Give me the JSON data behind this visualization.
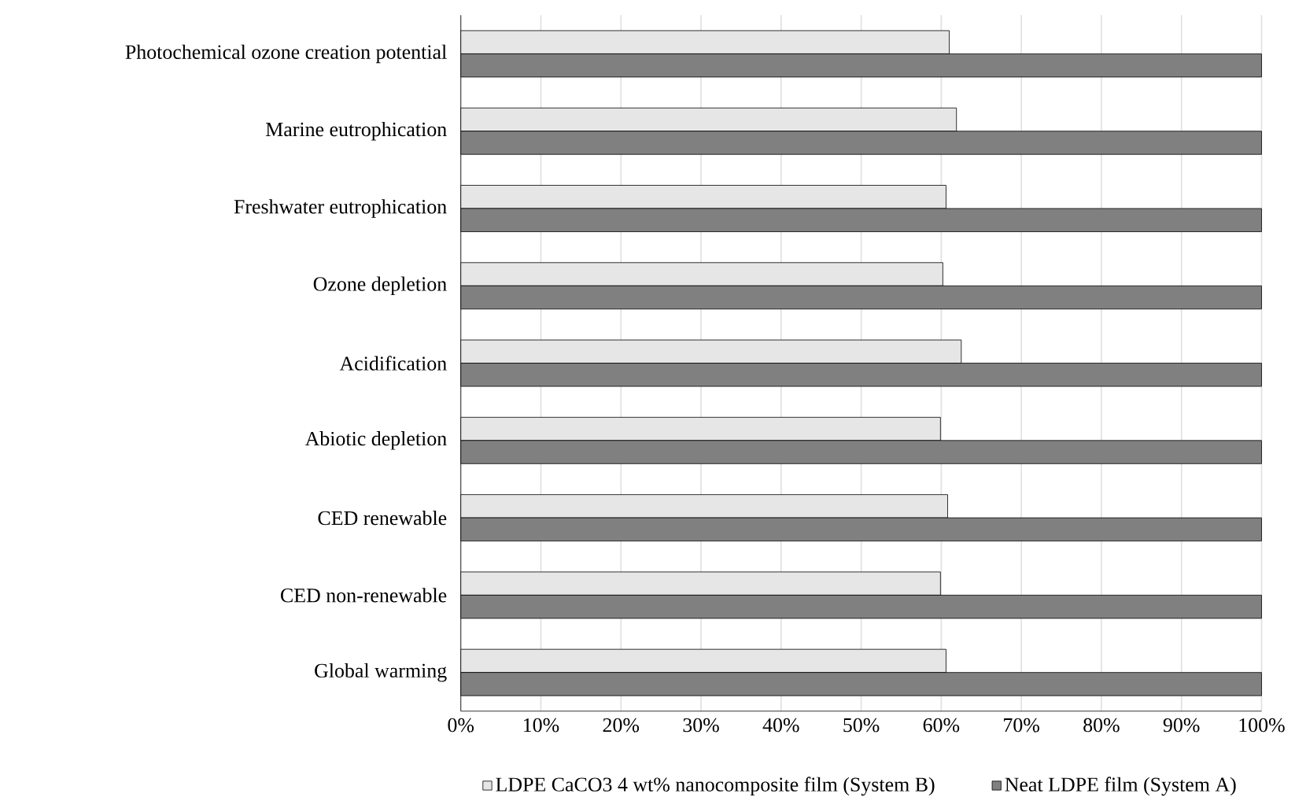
{
  "chart_data": {
    "type": "bar",
    "orientation": "horizontal",
    "categories": [
      "Photochemical ozone creation potential",
      "Marine eutrophication",
      "Freshwater eutrophication",
      "Ozone depletion",
      "Acidification",
      "Abiotic depletion",
      "CED renewable",
      "CED non-renewable",
      "Global warming"
    ],
    "series": [
      {
        "name": "LDPE CaCO3 4 wt% nanocomposite film (System B)",
        "color": "#e6e6e6",
        "values": [
          61.0,
          61.9,
          60.6,
          60.2,
          62.5,
          59.9,
          60.8,
          59.9,
          60.6
        ]
      },
      {
        "name": "Neat LDPE film (System A)",
        "color": "#808080",
        "values": [
          100,
          100,
          100,
          100,
          100,
          100,
          100,
          100,
          100
        ]
      }
    ],
    "xlim": [
      0,
      100
    ],
    "xticks": [
      {
        "value": 0,
        "label": "0%"
      },
      {
        "value": 10,
        "label": "10%"
      },
      {
        "value": 20,
        "label": "20%"
      },
      {
        "value": 30,
        "label": "30%"
      },
      {
        "value": 40,
        "label": "40%"
      },
      {
        "value": 50,
        "label": "50%"
      },
      {
        "value": 60,
        "label": "60%"
      },
      {
        "value": 70,
        "label": "70%"
      },
      {
        "value": 80,
        "label": "80%"
      },
      {
        "value": 90,
        "label": "90%"
      },
      {
        "value": 100,
        "label": "100%"
      }
    ],
    "grid": "x",
    "legend": "bottom"
  }
}
